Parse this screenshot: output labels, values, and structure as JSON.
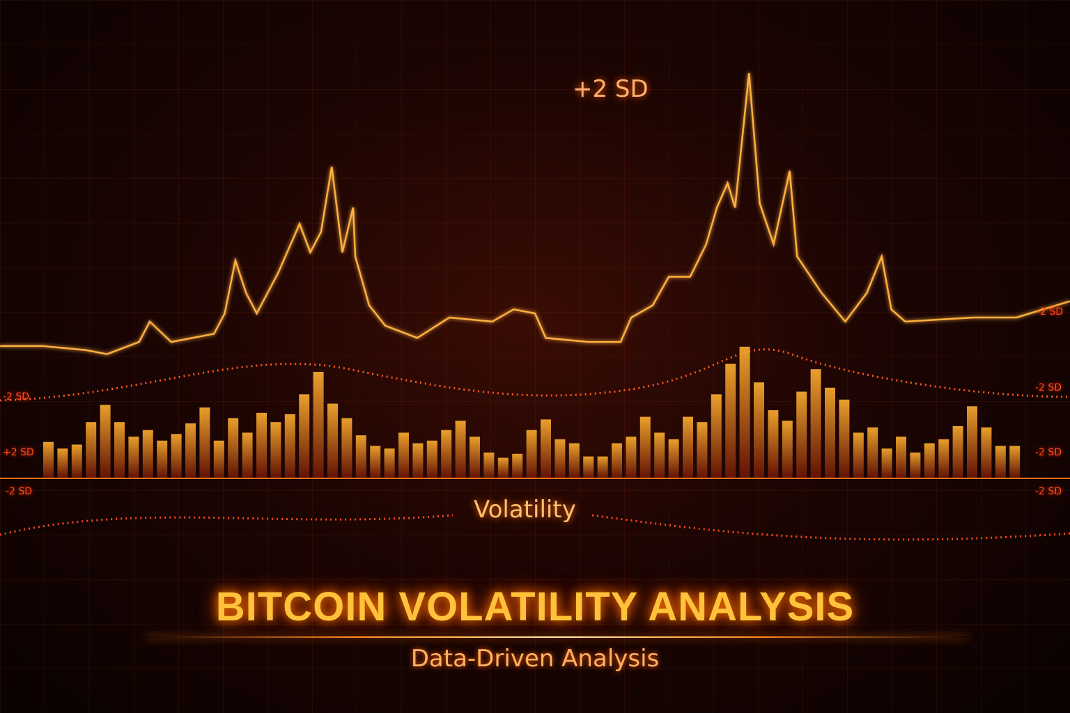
{
  "chart_data": {
    "type": "bar+line",
    "title": "BITCOIN VOLATILITY ANALYSIS",
    "subtitle": "Data-Driven Analysis",
    "annotation": "+2 SD",
    "center_label": "Volatility",
    "axis_labels_left": [
      "-2 SD",
      "+2 SD",
      "-2 SD"
    ],
    "axis_labels_right": [
      "-2 SD",
      "-2 SD",
      "-2 SD",
      "-2 SD"
    ],
    "grid": true,
    "line": {
      "x": [
        0,
        4,
        8,
        10,
        13,
        14,
        16,
        20,
        21,
        22,
        23,
        24,
        26,
        28,
        29,
        30,
        31,
        32,
        33,
        33.2,
        34.5,
        36,
        39,
        42,
        46,
        48,
        50,
        51,
        55,
        58,
        59,
        61,
        62.5,
        64.5,
        66,
        67,
        68,
        68.7,
        70,
        71,
        72.3,
        73.8,
        74.5,
        76.8,
        79,
        81,
        82.4,
        83.3,
        84.6,
        91,
        95,
        100
      ],
      "values": [
        33,
        33,
        32,
        31,
        34,
        39,
        34,
        36,
        41,
        54,
        46,
        41,
        51,
        63,
        56,
        61,
        77,
        56,
        67,
        55,
        43,
        38,
        35,
        40,
        39,
        42,
        41,
        35,
        34,
        34,
        40,
        43,
        50,
        50,
        58,
        67,
        73,
        67,
        100,
        68,
        58,
        76,
        55,
        46,
        39,
        46,
        55,
        42,
        39,
        40,
        40,
        44
      ]
    },
    "bars": {
      "values": [
        27,
        22,
        25,
        42,
        55,
        42,
        31,
        36,
        28,
        33,
        41,
        53,
        28,
        45,
        34,
        49,
        42,
        48,
        63,
        80,
        56,
        45,
        32,
        24,
        22,
        34,
        26,
        28,
        36,
        43,
        31,
        19,
        15,
        18,
        36,
        44,
        29,
        26,
        16,
        16,
        26,
        31,
        46,
        34,
        29,
        46,
        42,
        63,
        86,
        99,
        72,
        51,
        43,
        65,
        82,
        68,
        59,
        34,
        38,
        22,
        31,
        19,
        26,
        29,
        39,
        54,
        38,
        24,
        24
      ]
    }
  }
}
